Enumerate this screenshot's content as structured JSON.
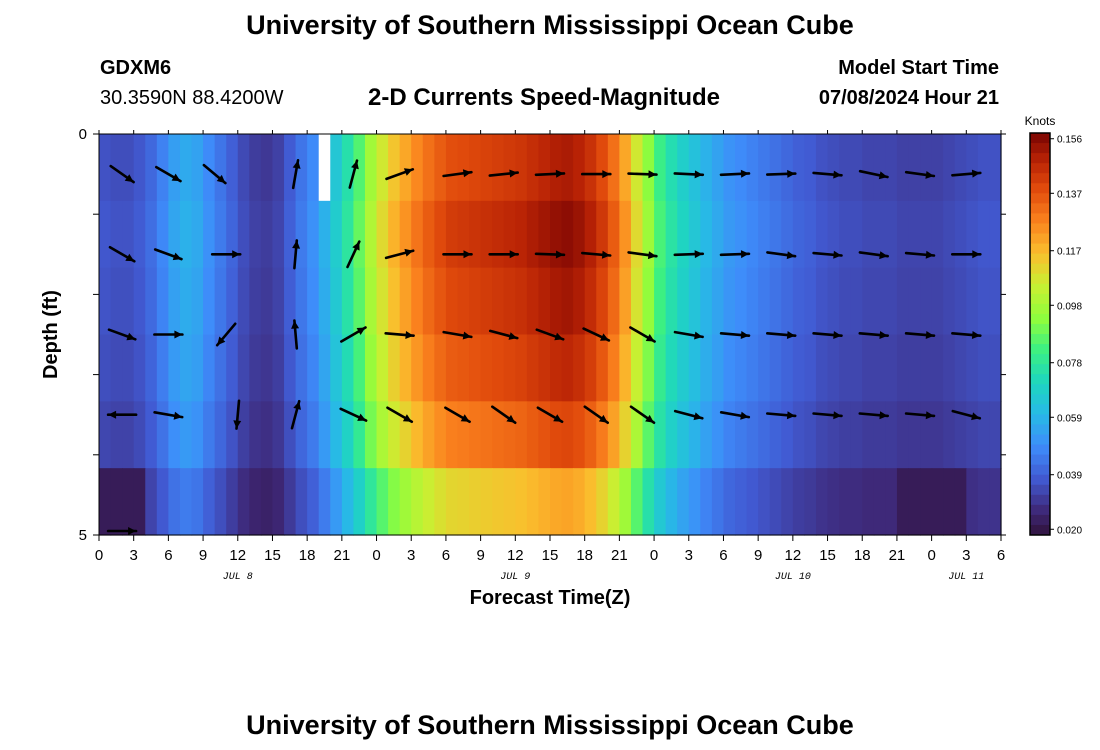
{
  "header": {
    "title": "University of Southern Mississippi Ocean Cube",
    "station": "GDXM6",
    "coords": "30.3590N  88.4200W",
    "plot_title": "2-D Currents Speed-Magnitude",
    "model_start_label": "Model Start Time",
    "model_start_value": "07/08/2024 Hour 21"
  },
  "footer": {
    "title": "University of Southern Mississippi Ocean Cube"
  },
  "chart_data": {
    "type": "heatmap",
    "title": "2-D Currents Speed-Magnitude",
    "xlabel": "Forecast Time(Z)",
    "ylabel": "Depth (ft)",
    "x_unit": "hours since 07/08 00Z",
    "x_range": [
      0,
      78
    ],
    "x_tick_hours": [
      0,
      3,
      6,
      9,
      12,
      15,
      18,
      21,
      24,
      27,
      30,
      33,
      36,
      39,
      42,
      45,
      48,
      51,
      54,
      57,
      60,
      63,
      66,
      69,
      72,
      75,
      78
    ],
    "x_tick_labels": [
      "0",
      "3",
      "6",
      "9",
      "12",
      "15",
      "18",
      "21",
      "0",
      "3",
      "6",
      "9",
      "12",
      "15",
      "18",
      "21",
      "0",
      "3",
      "6",
      "9",
      "12",
      "15",
      "18",
      "21",
      "0",
      "3",
      "6"
    ],
    "day_labels": [
      {
        "hour": 12,
        "label": "JUL 8"
      },
      {
        "hour": 36,
        "label": "JUL 9"
      },
      {
        "hour": 60,
        "label": "JUL 10"
      },
      {
        "hour": 75,
        "label": "JUL 11"
      }
    ],
    "y_range": [
      0,
      5
    ],
    "y_tick_labels": [
      {
        "value": 0,
        "label": "0"
      },
      {
        "value": 5,
        "label": "5"
      }
    ],
    "colorbar": {
      "unit": "Knots",
      "min": 0.018,
      "max": 0.158,
      "tick_values": [
        0.156,
        0.137,
        0.117,
        0.098,
        0.078,
        0.059,
        0.039,
        0.02
      ],
      "tick_labels": [
        "0.156",
        "0.137",
        "0.117",
        "0.098",
        "0.078",
        "0.059",
        "0.039",
        "0.020"
      ]
    },
    "speed_profile": {
      "hours": [
        0,
        1,
        2,
        3,
        4,
        5,
        6,
        7,
        8,
        9,
        10,
        11,
        12,
        13,
        14,
        15,
        16,
        17,
        18,
        19,
        20,
        21,
        22,
        23,
        24,
        25,
        26,
        27,
        28,
        29,
        30,
        31,
        32,
        33,
        34,
        35,
        36,
        37,
        38,
        39,
        40,
        41,
        42,
        43,
        44,
        45,
        46,
        47,
        48,
        49,
        50,
        51,
        52,
        53,
        54,
        55,
        56,
        57,
        58,
        59,
        60,
        61,
        62,
        63,
        64,
        65,
        66,
        67,
        68,
        69,
        70,
        71,
        72,
        73,
        74,
        75,
        76,
        77
      ],
      "knots": [
        0.037,
        0.036,
        0.036,
        0.038,
        0.042,
        0.048,
        0.055,
        0.058,
        0.056,
        0.05,
        0.045,
        0.04,
        0.035,
        0.032,
        0.031,
        0.033,
        0.039,
        0.045,
        0.05,
        0.058,
        0.067,
        0.077,
        0.088,
        0.1,
        0.11,
        0.118,
        0.124,
        0.13,
        0.135,
        0.139,
        0.142,
        0.143,
        0.144,
        0.145,
        0.146,
        0.147,
        0.148,
        0.15,
        0.152,
        0.154,
        0.155,
        0.153,
        0.149,
        0.143,
        0.135,
        0.124,
        0.11,
        0.096,
        0.084,
        0.076,
        0.07,
        0.065,
        0.06,
        0.056,
        0.052,
        0.05,
        0.048,
        0.046,
        0.044,
        0.042,
        0.04,
        0.039,
        0.037,
        0.036,
        0.035,
        0.035,
        0.034,
        0.034,
        0.034,
        0.033,
        0.033,
        0.033,
        0.033,
        0.034,
        0.035,
        0.036,
        0.037,
        0.037
      ]
    },
    "depth_factor": [
      0.97,
      1.0,
      0.98,
      0.95,
      0.9,
      0.78
    ],
    "near_surface_gap_hour": 19,
    "vectors": [
      {
        "depth": 0.5,
        "items": [
          [
            2,
            -35
          ],
          [
            6,
            -30
          ],
          [
            10,
            -40
          ],
          [
            17,
            80
          ],
          [
            22,
            75
          ],
          [
            26,
            20
          ],
          [
            31,
            8
          ],
          [
            35,
            6
          ],
          [
            39,
            3
          ],
          [
            43,
            0
          ],
          [
            47,
            -2
          ],
          [
            51,
            -3
          ],
          [
            55,
            3
          ],
          [
            59,
            2
          ],
          [
            63,
            -5
          ],
          [
            67,
            -12
          ],
          [
            71,
            -8
          ],
          [
            75,
            5
          ]
        ]
      },
      {
        "depth": 1.5,
        "items": [
          [
            2,
            -30
          ],
          [
            6,
            -20
          ],
          [
            11,
            0
          ],
          [
            17,
            85
          ],
          [
            22,
            65
          ],
          [
            26,
            15
          ],
          [
            31,
            0
          ],
          [
            35,
            0
          ],
          [
            39,
            -2
          ],
          [
            43,
            -5
          ],
          [
            47,
            -8
          ],
          [
            51,
            2
          ],
          [
            55,
            2
          ],
          [
            59,
            -8
          ],
          [
            63,
            -5
          ],
          [
            67,
            -8
          ],
          [
            71,
            -5
          ],
          [
            75,
            0
          ]
        ]
      },
      {
        "depth": 2.5,
        "items": [
          [
            2,
            -20
          ],
          [
            6,
            0
          ],
          [
            11,
            -130
          ],
          [
            17,
            95
          ],
          [
            22,
            30
          ],
          [
            26,
            -5
          ],
          [
            31,
            -10
          ],
          [
            35,
            -15
          ],
          [
            39,
            -20
          ],
          [
            43,
            -25
          ],
          [
            47,
            -30
          ],
          [
            51,
            -10
          ],
          [
            55,
            -5
          ],
          [
            59,
            -5
          ],
          [
            63,
            -5
          ],
          [
            67,
            -5
          ],
          [
            71,
            -5
          ],
          [
            75,
            -5
          ]
        ]
      },
      {
        "depth": 3.5,
        "items": [
          [
            2,
            180
          ],
          [
            6,
            -10
          ],
          [
            12,
            -95
          ],
          [
            17,
            75
          ],
          [
            22,
            -25
          ],
          [
            26,
            -30
          ],
          [
            31,
            -30
          ],
          [
            35,
            -35
          ],
          [
            39,
            -30
          ],
          [
            43,
            -35
          ],
          [
            47,
            -35
          ],
          [
            51,
            -15
          ],
          [
            55,
            -10
          ],
          [
            59,
            -5
          ],
          [
            63,
            -5
          ],
          [
            67,
            -5
          ],
          [
            71,
            -5
          ],
          [
            75,
            -15
          ]
        ]
      },
      {
        "depth": 4.95,
        "items": [
          [
            2,
            0
          ]
        ]
      }
    ]
  }
}
